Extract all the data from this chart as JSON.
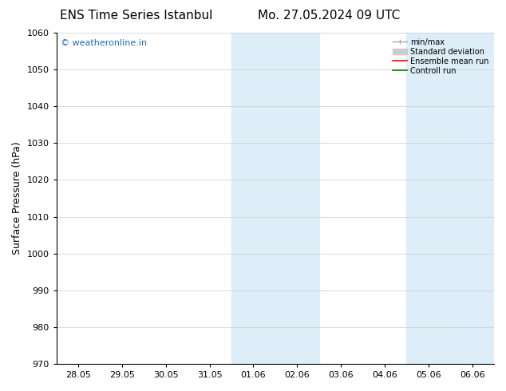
{
  "title_left": "ENS Time Series Istanbul",
  "title_right": "Mo. 27.05.2024 09 UTC",
  "ylabel": "Surface Pressure (hPa)",
  "ylim": [
    970,
    1060
  ],
  "yticks": [
    970,
    980,
    990,
    1000,
    1010,
    1020,
    1030,
    1040,
    1050,
    1060
  ],
  "xtick_labels": [
    "28.05",
    "29.05",
    "30.05",
    "31.05",
    "01.06",
    "02.06",
    "03.06",
    "04.06",
    "05.06",
    "06.06"
  ],
  "xtick_positions": [
    0,
    1,
    2,
    3,
    4,
    5,
    6,
    7,
    8,
    9
  ],
  "xlim": [
    -0.5,
    9.5
  ],
  "shaded_bands": [
    {
      "x_start": 3.5,
      "x_end": 5.5,
      "color": "#ddeef8"
    },
    {
      "x_start": 7.5,
      "x_end": 9.5,
      "color": "#ddeef8"
    }
  ],
  "watermark": "© weatheronline.in",
  "watermark_color": "#1a6bbf",
  "legend_items": [
    {
      "label": "min/max",
      "color": "#aaaaaa",
      "lw": 1.0,
      "ls": "-"
    },
    {
      "label": "Standard deviation",
      "color": "#cccccc",
      "lw": 5,
      "ls": "-"
    },
    {
      "label": "Ensemble mean run",
      "color": "#ff0000",
      "lw": 1.2,
      "ls": "-"
    },
    {
      "label": "Controll run",
      "color": "#008000",
      "lw": 1.2,
      "ls": "-"
    }
  ],
  "background_color": "#ffffff",
  "grid_color": "#cccccc",
  "title_fontsize": 11,
  "ylabel_fontsize": 9,
  "tick_fontsize": 8,
  "watermark_fontsize": 8
}
